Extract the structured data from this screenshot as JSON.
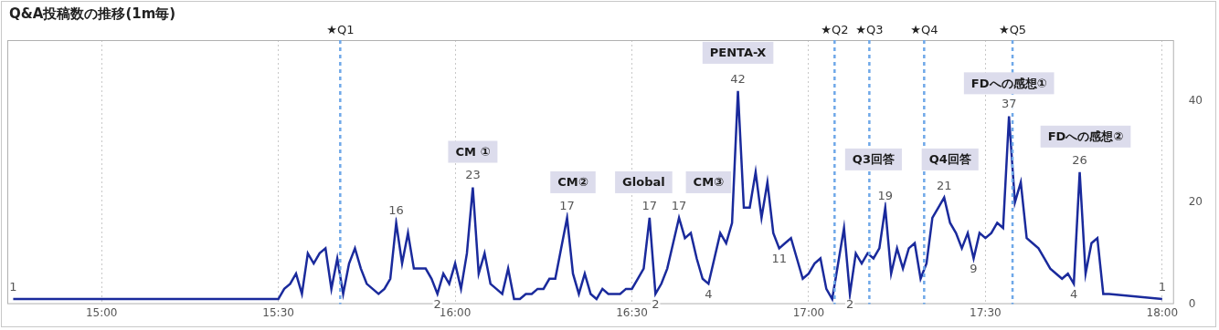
{
  "chart_data": {
    "type": "line",
    "title": "Q&A投稿数の推移(1m毎)",
    "color": "#1a2a9c",
    "x": [
      885,
      930,
      931,
      932,
      933,
      934,
      935,
      936,
      937,
      938,
      939,
      940,
      941,
      942,
      943,
      944,
      945,
      946,
      947,
      948,
      949,
      950,
      951,
      952,
      953,
      954,
      955,
      956,
      957,
      958,
      959,
      960,
      961,
      962,
      963,
      964,
      965,
      966,
      967,
      968,
      969,
      970,
      971,
      972,
      973,
      974,
      975,
      976,
      977,
      978,
      979,
      980,
      981,
      982,
      983,
      984,
      985,
      986,
      987,
      988,
      989,
      990,
      991,
      992,
      993,
      994,
      995,
      996,
      997,
      998,
      999,
      1000,
      1001,
      1002,
      1003,
      1004,
      1005,
      1006,
      1007,
      1008,
      1009,
      1010,
      1011,
      1012,
      1013,
      1014,
      1015,
      1016,
      1017,
      1018,
      1019,
      1020,
      1021,
      1022,
      1023,
      1024,
      1025,
      1026,
      1027,
      1028,
      1029,
      1030,
      1031,
      1032,
      1033,
      1034,
      1035,
      1036,
      1037,
      1038,
      1039,
      1040,
      1041,
      1042,
      1043,
      1044,
      1045,
      1046,
      1047,
      1048,
      1049,
      1050,
      1051,
      1052,
      1053,
      1054,
      1055,
      1056,
      1057,
      1058,
      1059,
      1060,
      1061,
      1062,
      1063,
      1064,
      1065,
      1066,
      1067,
      1068,
      1069,
      1070,
      1071,
      1080
    ],
    "values": [
      1,
      1,
      3,
      4,
      6,
      2,
      10,
      8,
      10,
      11,
      3,
      9,
      2,
      8,
      11,
      7,
      4,
      3,
      2,
      3,
      5,
      16,
      8,
      14,
      7,
      7,
      7,
      5,
      2,
      6,
      4,
      8,
      3,
      10,
      23,
      6,
      10,
      4,
      3,
      2,
      7,
      1,
      1,
      2,
      2,
      3,
      3,
      5,
      5,
      11,
      17,
      6,
      2,
      6,
      2,
      1,
      3,
      2,
      2,
      2,
      3,
      3,
      5,
      7,
      17,
      2,
      4,
      7,
      12,
      17,
      13,
      14,
      9,
      5,
      4,
      9,
      14,
      12,
      16,
      42,
      19,
      19,
      26,
      17,
      24,
      14,
      11,
      12,
      13,
      9,
      5,
      6,
      8,
      9,
      3,
      1,
      8,
      15,
      2,
      10,
      8,
      10,
      9,
      11,
      19,
      6,
      11,
      7,
      11,
      12,
      5,
      8,
      17,
      19,
      21,
      16,
      14,
      11,
      14,
      9,
      14,
      13,
      14,
      16,
      15,
      37,
      20,
      24,
      13,
      12,
      11,
      9,
      7,
      6,
      5,
      6,
      4,
      26,
      6,
      12,
      13,
      2,
      2,
      1
    ],
    "xlim": [
      884,
      1082
    ],
    "xticks": [
      {
        "value": 900,
        "label": "15:00"
      },
      {
        "value": 930,
        "label": "15:30"
      },
      {
        "value": 960,
        "label": "16:00"
      },
      {
        "value": 990,
        "label": "16:30"
      },
      {
        "value": 1020,
        "label": "17:00"
      },
      {
        "value": 1050,
        "label": "17:30"
      },
      {
        "value": 1080,
        "label": "18:00"
      }
    ],
    "ylim": [
      0,
      52
    ],
    "yticks": [
      0,
      20,
      40
    ],
    "grid": true,
    "labeled_x": [
      885,
      950,
      957,
      963,
      979,
      993,
      994,
      998,
      1003,
      1008,
      1015,
      1027,
      1033,
      1043,
      1048,
      1054,
      1065,
      1066,
      1080
    ],
    "markers": [
      {
        "x": 940.5,
        "label": "★Q1"
      },
      {
        "x": 1024.4,
        "label": "★Q2"
      },
      {
        "x": 1030.3,
        "label": "★Q3"
      },
      {
        "x": 1039.6,
        "label": "★Q4"
      },
      {
        "x": 1054.6,
        "label": "★Q5"
      }
    ],
    "annotations": [
      {
        "x": 963,
        "y": 30,
        "text": "CM ①"
      },
      {
        "x": 980,
        "y": 24,
        "text": "CM②"
      },
      {
        "x": 992,
        "y": 24,
        "text": "Global"
      },
      {
        "x": 1003,
        "y": 24,
        "text": "CM③"
      },
      {
        "x": 1008,
        "y": 49.5,
        "text": "PENTA-X"
      },
      {
        "x": 1031,
        "y": 28.5,
        "text": "Q3回答"
      },
      {
        "x": 1044,
        "y": 28.5,
        "text": "Q4回答"
      },
      {
        "x": 1054,
        "y": 43.5,
        "text": "FDへの感想①"
      },
      {
        "x": 1067,
        "y": 33,
        "text": "FDへの感想②"
      }
    ]
  }
}
